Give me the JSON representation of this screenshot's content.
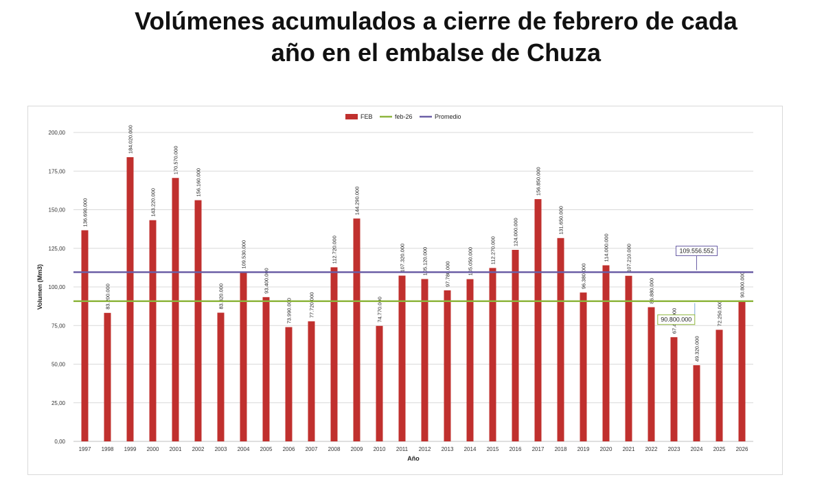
{
  "title_line1": "Volúmenes acumulados a cierre de febrero de cada",
  "title_line2": "año en el embalse de Chuza",
  "chart_data": {
    "type": "bar",
    "xlabel": "Año",
    "ylabel": "Volumen (Mm3)",
    "ylim": [
      0,
      200
    ],
    "yticks": [
      "0,00",
      "25,00",
      "50,00",
      "75,00",
      "100,00",
      "125,00",
      "150,00",
      "175,00",
      "200,00"
    ],
    "grid": true,
    "legend_position": "top-center",
    "categories": [
      "1997",
      "1998",
      "1999",
      "2000",
      "2001",
      "2002",
      "2003",
      "2004",
      "2005",
      "2006",
      "2007",
      "2008",
      "2009",
      "2010",
      "2011",
      "2012",
      "2013",
      "2014",
      "2015",
      "2016",
      "2017",
      "2018",
      "2019",
      "2020",
      "2021",
      "2022",
      "2023",
      "2024",
      "2025",
      "2026"
    ],
    "series": [
      {
        "name": "FEB",
        "color": "#c0302e",
        "values": [
          136.69,
          83.2,
          184.02,
          143.22,
          170.57,
          156.16,
          83.32,
          109.53,
          93.4,
          73.99,
          77.72,
          112.72,
          144.29,
          74.77,
          107.32,
          105.12,
          97.78,
          105.05,
          112.27,
          124.0,
          156.85,
          131.65,
          96.38,
          114.0,
          107.21,
          86.88,
          67.46,
          49.32,
          72.25,
          90.8
        ],
        "data_labels": [
          "136.690.000",
          "83.200.000",
          "184.020.000",
          "143.220.000",
          "170.570.000",
          "156.160.000",
          "83.320.000",
          "109.530.000",
          "93.400.000",
          "73.990.000",
          "77.720.000",
          "112.720.000",
          "144.290.000",
          "74.770.000",
          "107.320.000",
          "105.120.000",
          "97.780.000",
          "105.050.000",
          "112.270.000",
          "124.000.000",
          "156.850.000",
          "131.650.000",
          "96.380.000",
          "114.000.000",
          "107.210.000",
          "86.880.000",
          "67.460.000",
          "49.320.000",
          "72.250.000",
          "90.800.000"
        ]
      },
      {
        "name": "feb-26",
        "color": "#8db53c",
        "value": 90.8,
        "callout": "90.800.000"
      },
      {
        "name": "Promedio",
        "color": "#6b5fa6",
        "value": 109.556552,
        "callout": "109.556.552"
      }
    ]
  }
}
